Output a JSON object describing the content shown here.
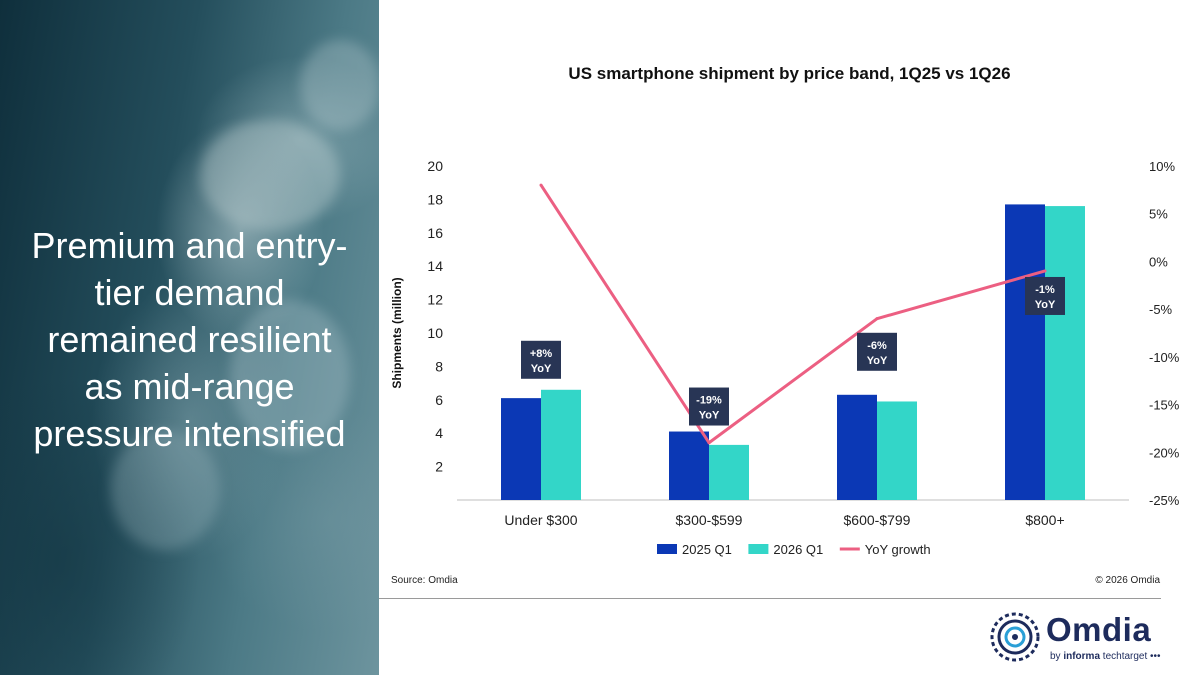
{
  "headline": [
    "Premium and entry-",
    "tier demand",
    "remained resilient",
    "as mid-range",
    "pressure intensified"
  ],
  "source": "Source: Omdia",
  "copyright": "© 2026 Omdia",
  "logo": {
    "word": "Omdia",
    "tag_prefix": "by ",
    "tag_brand": "informa",
    "tag_suffix": " techtarget •••"
  },
  "colors": {
    "q1_2025": "#0b38b5",
    "q1_2026": "#33d6c8",
    "yoy": "#ec5f82",
    "label_box": "#283555",
    "axis_text": "#222222"
  },
  "chart_data": {
    "type": "bar",
    "title": "US smartphone shipment by price band, 1Q25 vs 1Q26",
    "xlabel": "",
    "ylabel": "Shipments (million)",
    "categories": [
      "Under $300",
      "$300-$599",
      "$600-$799",
      "$800+"
    ],
    "series": [
      {
        "name": "2025 Q1",
        "values": [
          6.1,
          4.1,
          6.3,
          17.7
        ]
      },
      {
        "name": "2026 Q1",
        "values": [
          6.6,
          3.3,
          5.9,
          17.6
        ]
      }
    ],
    "line_series": {
      "name": "YoY growth",
      "values": [
        8,
        -19,
        -6,
        -1
      ],
      "axis": "right"
    },
    "data_labels": [
      [
        "+8%",
        "YoY"
      ],
      [
        "-19%",
        "YoY"
      ],
      [
        "-6%",
        "YoY"
      ],
      [
        "-1%",
        "YoY"
      ]
    ],
    "ylim": [
      0,
      20
    ],
    "yticks": [
      "2",
      "4",
      "6",
      "8",
      "10",
      "12",
      "14",
      "16",
      "18",
      "20"
    ],
    "y2lim": [
      -25,
      10
    ],
    "y2ticks": [
      "10%",
      "5%",
      "0%",
      "-5%",
      "-10%",
      "-15%",
      "-20%",
      "-25%"
    ],
    "legend": [
      "2025 Q1",
      "2026 Q1",
      "YoY growth"
    ],
    "legend_position": "bottom",
    "grid": false
  }
}
